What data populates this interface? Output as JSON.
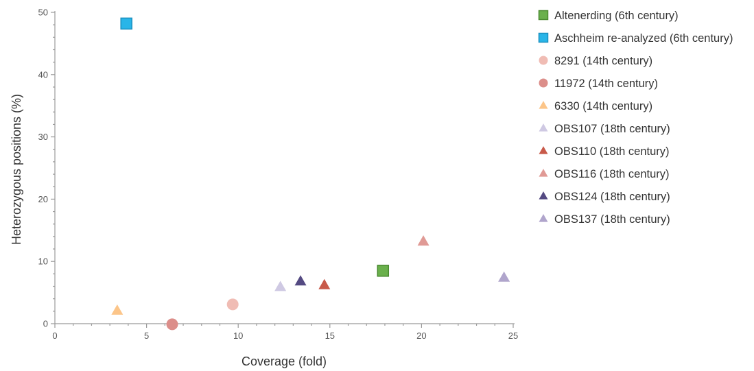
{
  "chart_data": {
    "type": "scatter",
    "xlabel": "Coverage (fold)",
    "ylabel": "Heterozygous positions  (%)",
    "xlim": [
      0,
      25
    ],
    "ylim": [
      0,
      50
    ],
    "xticks": [
      "0",
      "5",
      "10",
      "15",
      "20",
      "25"
    ],
    "xtick_values": [
      0,
      5,
      10,
      15,
      20,
      25
    ],
    "yticks": [
      "0",
      "10",
      "20",
      "30",
      "40",
      "50"
    ],
    "ytick_values": [
      0,
      10,
      20,
      30,
      40,
      50
    ],
    "grid": false,
    "legend_position": "right",
    "series": [
      {
        "name": "Altenerding (6th century)",
        "marker": "square",
        "color": "#6ab04c",
        "stroke": "#4a8a30",
        "x": 17.9,
        "y": 8.5
      },
      {
        "name": "Aschheim re-analyzed (6th century)",
        "marker": "square",
        "color": "#29b5e8",
        "stroke": "#1a8fbf",
        "x": 3.9,
        "y": 48.2
      },
      {
        "name": "8291 (14th century)",
        "marker": "circle",
        "color": "#f0bcb4",
        "stroke": "#f0bcb4",
        "x": 9.7,
        "y": 3.1
      },
      {
        "name": "11972 (14th century)",
        "marker": "circle",
        "color": "#dc8e8a",
        "stroke": "#dc8e8a",
        "x": 6.4,
        "y": -0.1
      },
      {
        "name": "6330 (14th century)",
        "marker": "triangle",
        "color": "#fcc589",
        "stroke": "#fcc589",
        "x": 3.4,
        "y": 2.1
      },
      {
        "name": "OBS107 (18th century)",
        "marker": "triangle",
        "color": "#cfc9e3",
        "stroke": "#cfc9e3",
        "x": 12.3,
        "y": 5.9
      },
      {
        "name": "OBS110 (18th century)",
        "marker": "triangle",
        "color": "#c85a4a",
        "stroke": "#c85a4a",
        "x": 14.7,
        "y": 6.2
      },
      {
        "name": "OBS116 (18th century)",
        "marker": "triangle",
        "color": "#e09a95",
        "stroke": "#e09a95",
        "x": 20.1,
        "y": 13.2
      },
      {
        "name": "OBS124 (18th century)",
        "marker": "triangle",
        "color": "#544a82",
        "stroke": "#544a82",
        "x": 13.4,
        "y": 6.8
      },
      {
        "name": "OBS137 (18th century)",
        "marker": "triangle",
        "color": "#b0a5cc",
        "stroke": "#b0a5cc",
        "x": 24.5,
        "y": 7.4
      }
    ]
  }
}
